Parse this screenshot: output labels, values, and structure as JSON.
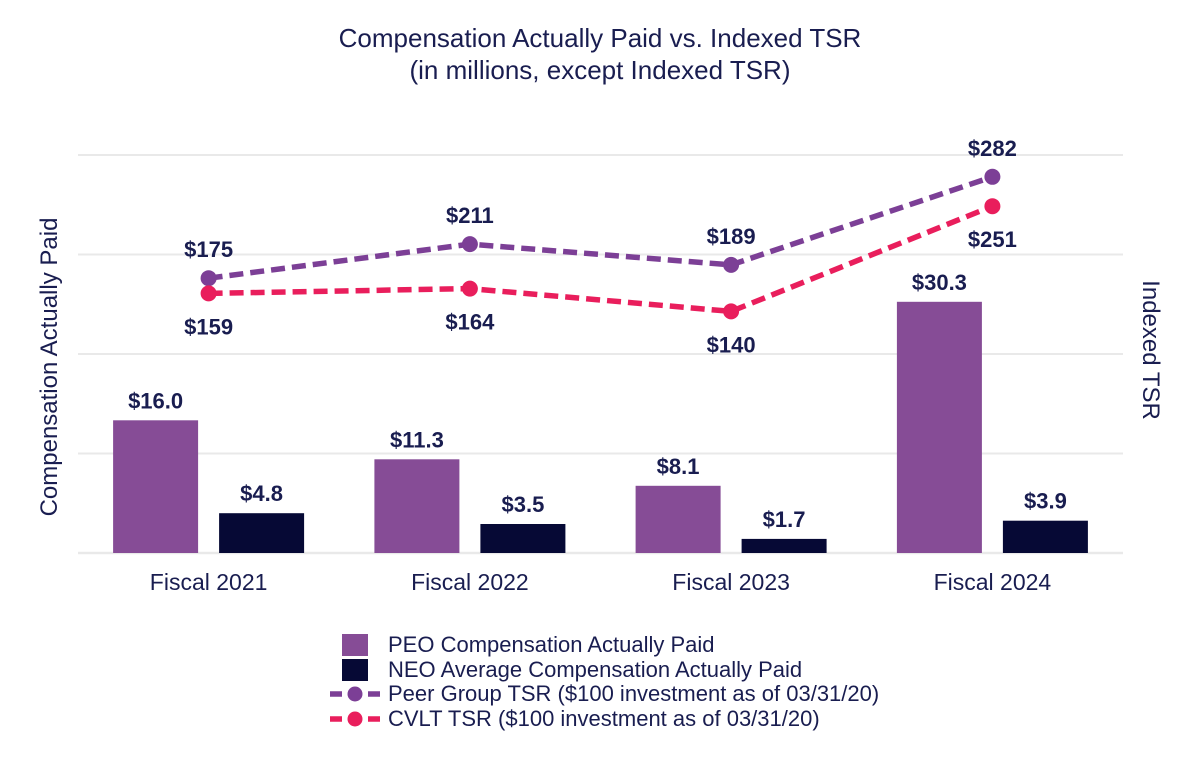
{
  "colors": {
    "text": "#191D50",
    "gridline": "#E9E9E9",
    "background": "#FFFFFF",
    "peo_bar": "#864C96",
    "neo_bar": "#060935",
    "peer_line": "#7C3F96",
    "cvlt_line": "#E91E5C"
  },
  "chart_data": {
    "type": "combo_bar_line",
    "title": "Compensation Actually Paid vs. Indexed TSR",
    "subtitle": "(in millions, except Indexed TSR)",
    "left_axis_label": "Compensation Actually Paid",
    "right_axis_label": "Indexed TSR",
    "categories": [
      "Fiscal 2021",
      "Fiscal 2022",
      "Fiscal 2023",
      "Fiscal 2024"
    ],
    "series": [
      {
        "id": "peo",
        "name": "PEO Compensation Actually Paid",
        "type": "bar",
        "axis": "left",
        "color_key": "peo_bar",
        "values": [
          16.0,
          11.3,
          8.1,
          30.3
        ],
        "labels": [
          "$16.0",
          "$11.3",
          "$8.1",
          "$30.3"
        ]
      },
      {
        "id": "neo",
        "name": "NEO Average Compensation Actually Paid",
        "type": "bar",
        "axis": "left",
        "color_key": "neo_bar",
        "values": [
          4.8,
          3.5,
          1.7,
          3.9
        ],
        "labels": [
          "$4.8",
          "$3.5",
          "$1.7",
          "$3.9"
        ]
      },
      {
        "id": "peer_tsr",
        "name": "Peer Group TSR ($100 investment as of 03/31/20)",
        "type": "line",
        "axis": "right",
        "color_key": "peer_line",
        "values": [
          175,
          211,
          189,
          282
        ],
        "labels": [
          "$175",
          "$211",
          "$189",
          "$282"
        ],
        "label_position": "above"
      },
      {
        "id": "cvlt_tsr",
        "name": "CVLT TSR ($100 investment as of 03/31/20)",
        "type": "line",
        "axis": "right",
        "color_key": "cvlt_line",
        "values": [
          159,
          164,
          140,
          251
        ],
        "labels": [
          "$159",
          "$164",
          "$140",
          "$251"
        ],
        "label_position": "below"
      }
    ],
    "left_ylim": [
      0,
      48
    ],
    "left_gridline_step": 12,
    "right_ylim": [
      -115,
      305
    ],
    "gridlines": true,
    "axis_tick_labels_shown": false,
    "legend_position": "bottom"
  }
}
